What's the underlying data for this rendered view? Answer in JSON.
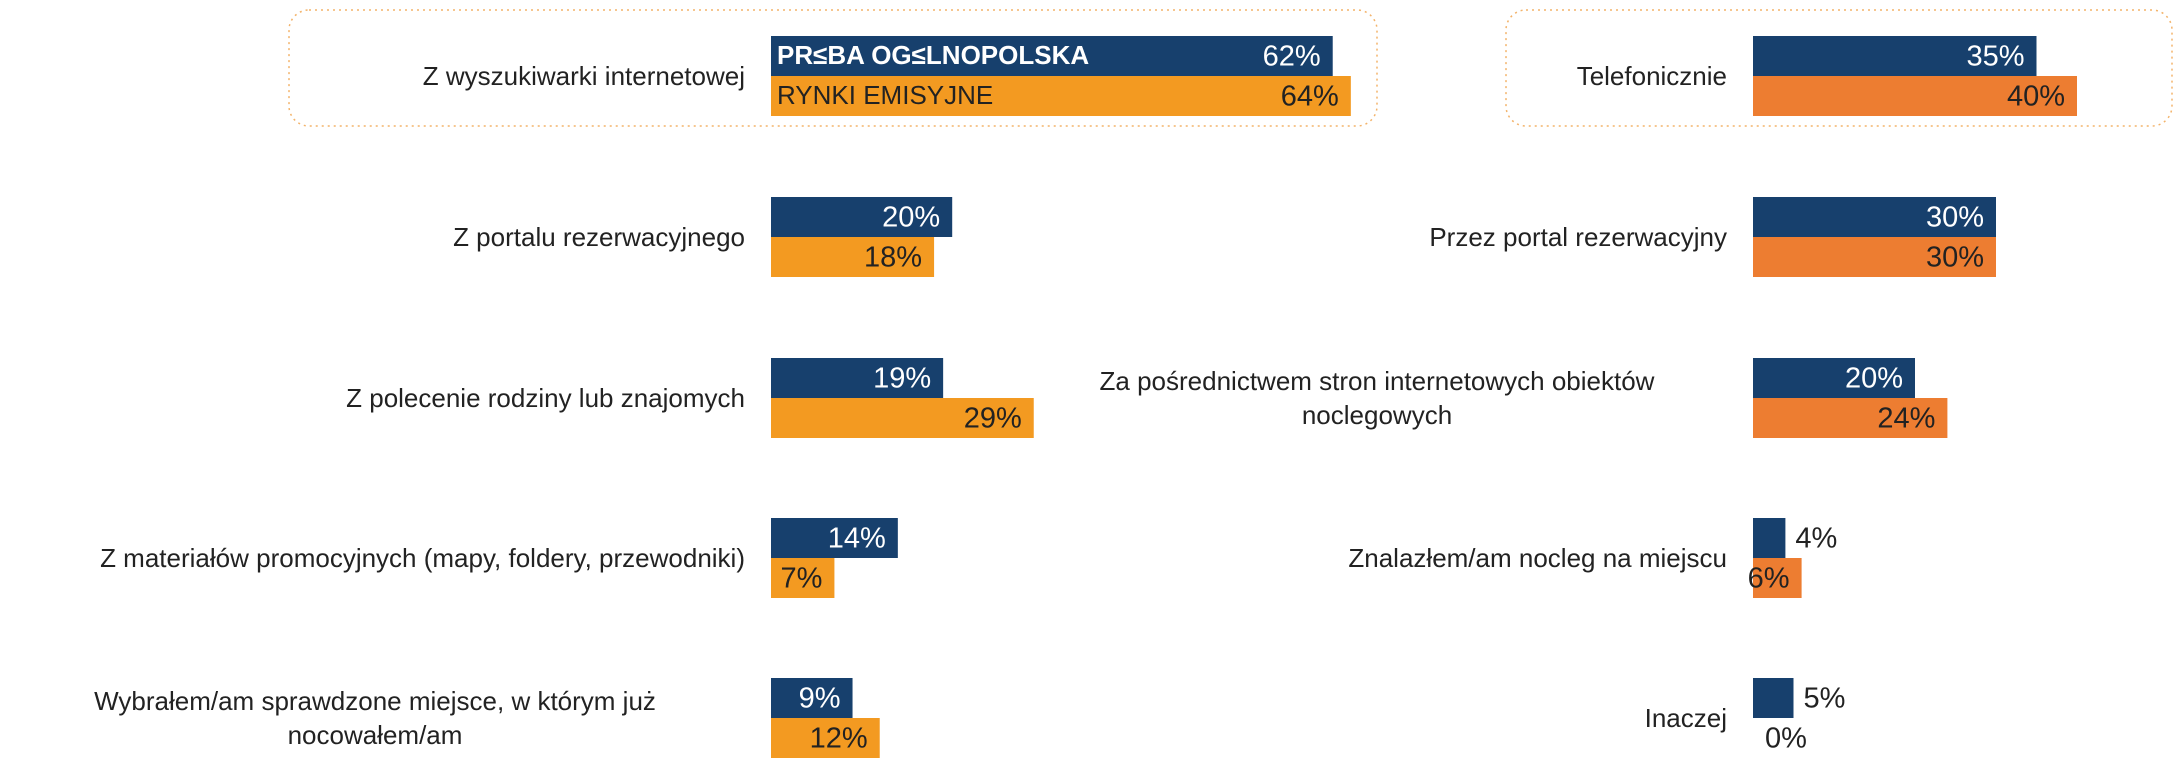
{
  "chart_data": [
    {
      "type": "bar",
      "orientation": "horizontal",
      "categories": [
        "Z wyszukiwarki internetowej",
        "Z portalu rezerwacyjnego",
        "Z polecenie rodziny lub znajomych",
        "Z materiałów promocyjnych (mapy, foldery, przewodniki)",
        "Wybrałem/am sprawdzone miejsce, w którym już nocowałem/am"
      ],
      "series": [
        {
          "name": "PR≤BA OG≤LNOPOLSKA",
          "color": "#17406d",
          "values": [
            62,
            20,
            19,
            14,
            9
          ],
          "value_labels": [
            "62%",
            "20%",
            "19%",
            "14%",
            "9%"
          ]
        },
        {
          "name": "RYNKI EMISYJNE",
          "color": "#f39a21",
          "values": [
            64,
            18,
            29,
            7,
            12
          ],
          "value_labels": [
            "64%",
            "18%",
            "29%",
            "7%",
            "12%"
          ]
        }
      ]
    },
    {
      "type": "bar",
      "orientation": "horizontal",
      "categories": [
        "Telefonicznie",
        "Przez portal rezerwacyjny",
        "Za pośrednictwem stron internetowych obiektów noclegowych",
        "Znalazłem/am nocleg na miejscu",
        "Inaczej"
      ],
      "series": [
        {
          "color": "#17406d",
          "values": [
            35,
            30,
            20,
            4,
            5
          ],
          "value_labels": [
            "35%",
            "30%",
            "20%",
            "4%",
            "5%"
          ]
        },
        {
          "color": "#ed7d31",
          "values": [
            40,
            30,
            24,
            6,
            0
          ],
          "value_labels": [
            "40%",
            "30%",
            "24%",
            "6%",
            "0%"
          ]
        }
      ]
    }
  ]
}
